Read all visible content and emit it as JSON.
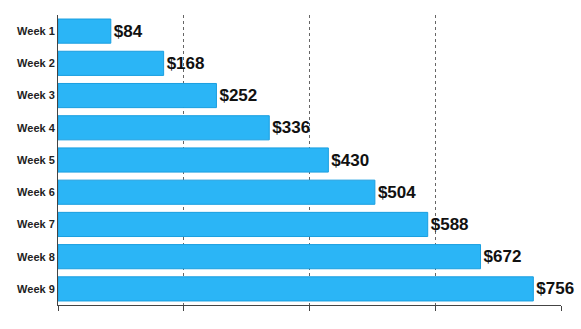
{
  "chart_data": {
    "type": "bar",
    "orientation": "horizontal",
    "categories": [
      "Week 1",
      "Week 2",
      "Week 3",
      "Week 4",
      "Week 5",
      "Week 6",
      "Week 7",
      "Week 8",
      "Week 9"
    ],
    "values": [
      84,
      168,
      252,
      336,
      430,
      504,
      588,
      672,
      756
    ],
    "value_labels": [
      "$84",
      "$168",
      "$252",
      "$336",
      "$430",
      "$504",
      "$588",
      "$672",
      "$756"
    ],
    "data_labels": true,
    "color": "#2bb5f6",
    "xlim": [
      0,
      800
    ],
    "xticks": [
      0,
      200,
      400,
      600,
      800
    ],
    "grid": true,
    "tick_labels": "y"
  }
}
